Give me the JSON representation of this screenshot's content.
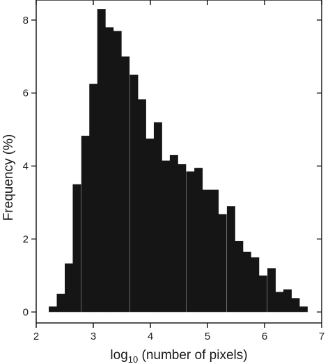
{
  "chart_data": {
    "type": "bar",
    "title": "",
    "xlabel_main": "log",
    "xlabel_sub": "10",
    "xlabel_rest": " (number of pixels)",
    "ylabel": "Frequency (%)",
    "xlim": [
      2,
      7
    ],
    "ylim": [
      -0.3,
      8.55
    ],
    "xticks": [
      "2",
      "3",
      "4",
      "5",
      "6",
      "7"
    ],
    "yticks": [
      "0",
      "2",
      "4",
      "6",
      "8"
    ],
    "bin_width": 0.142,
    "bins": [
      {
        "x": 2.22,
        "y": 0.15
      },
      {
        "x": 2.36,
        "y": 0.5
      },
      {
        "x": 2.5,
        "y": 1.33
      },
      {
        "x": 2.64,
        "y": 3.5
      },
      {
        "x": 2.79,
        "y": 4.83
      },
      {
        "x": 2.93,
        "y": 6.25
      },
      {
        "x": 3.07,
        "y": 8.3
      },
      {
        "x": 3.21,
        "y": 7.8
      },
      {
        "x": 3.35,
        "y": 7.7
      },
      {
        "x": 3.49,
        "y": 7.0
      },
      {
        "x": 3.64,
        "y": 6.5
      },
      {
        "x": 3.78,
        "y": 5.83
      },
      {
        "x": 3.92,
        "y": 4.75
      },
      {
        "x": 4.06,
        "y": 5.2
      },
      {
        "x": 4.2,
        "y": 4.15
      },
      {
        "x": 4.34,
        "y": 4.3
      },
      {
        "x": 4.48,
        "y": 4.05
      },
      {
        "x": 4.63,
        "y": 3.85
      },
      {
        "x": 4.77,
        "y": 3.95
      },
      {
        "x": 4.91,
        "y": 3.35
      },
      {
        "x": 5.05,
        "y": 3.35
      },
      {
        "x": 5.19,
        "y": 2.68
      },
      {
        "x": 5.34,
        "y": 2.9
      },
      {
        "x": 5.48,
        "y": 1.95
      },
      {
        "x": 5.62,
        "y": 1.65
      },
      {
        "x": 5.76,
        "y": 1.5
      },
      {
        "x": 5.9,
        "y": 1.0
      },
      {
        "x": 6.05,
        "y": 1.2
      },
      {
        "x": 6.19,
        "y": 0.55
      },
      {
        "x": 6.33,
        "y": 0.62
      },
      {
        "x": 6.47,
        "y": 0.38
      },
      {
        "x": 6.61,
        "y": 0.15
      }
    ],
    "colors": {
      "bar": "#151515",
      "axis": "#1a1a1a",
      "background": "#ffffff"
    },
    "grid": false,
    "legend": "none"
  }
}
